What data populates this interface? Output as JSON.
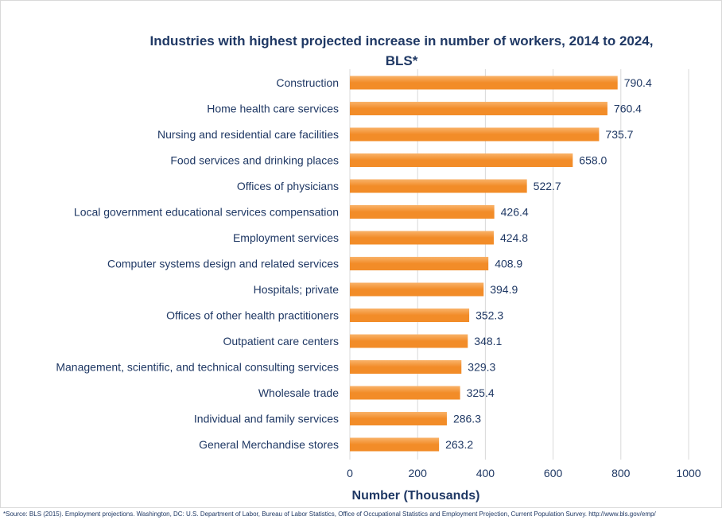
{
  "chart_data": {
    "type": "bar",
    "orientation": "horizontal",
    "title_line1": "Industries with highest projected increase in number of workers, 2014 to 2024,",
    "title_line2": "BLS*",
    "xlabel": "Number (Thousands)",
    "ylabel": "",
    "xlim": [
      0,
      1000
    ],
    "xticks": [
      "0",
      "200",
      "400",
      "600",
      "800",
      "1000"
    ],
    "grid": true,
    "categories": [
      "Construction",
      "Home health care services",
      "Nursing and residential care facilities",
      "Food services and drinking places",
      "Offices of physicians",
      "Local government educational services compensation",
      "Employment services",
      "Computer systems design and related services",
      "Hospitals; private",
      "Offices of other health practitioners",
      "Outpatient care centers",
      "Management, scientific, and technical consulting services",
      "Wholesale trade",
      "Individual and family services",
      "General Merchandise stores"
    ],
    "values": [
      790.4,
      760.4,
      735.7,
      658.0,
      522.7,
      426.4,
      424.8,
      408.9,
      394.9,
      352.3,
      348.1,
      329.3,
      325.4,
      286.3,
      263.2
    ],
    "value_labels": [
      "790.4",
      "760.4",
      "735.7",
      "658.0",
      "522.7",
      "426.4",
      "424.8",
      "408.9",
      "394.9",
      "352.3",
      "348.1",
      "329.3",
      "325.4",
      "286.3",
      "263.2"
    ],
    "bar_color": "#f28c28",
    "bar_color_light": "#f9b36a"
  },
  "source_note": "*Source: BLS (2015). Employment projections. Washington, DC: U.S. Department of Labor, Bureau of Labor Statistics, Office of Occupational Statistics and Employment Projection, Current Population Survey. http://www.bls.gov/emp/"
}
